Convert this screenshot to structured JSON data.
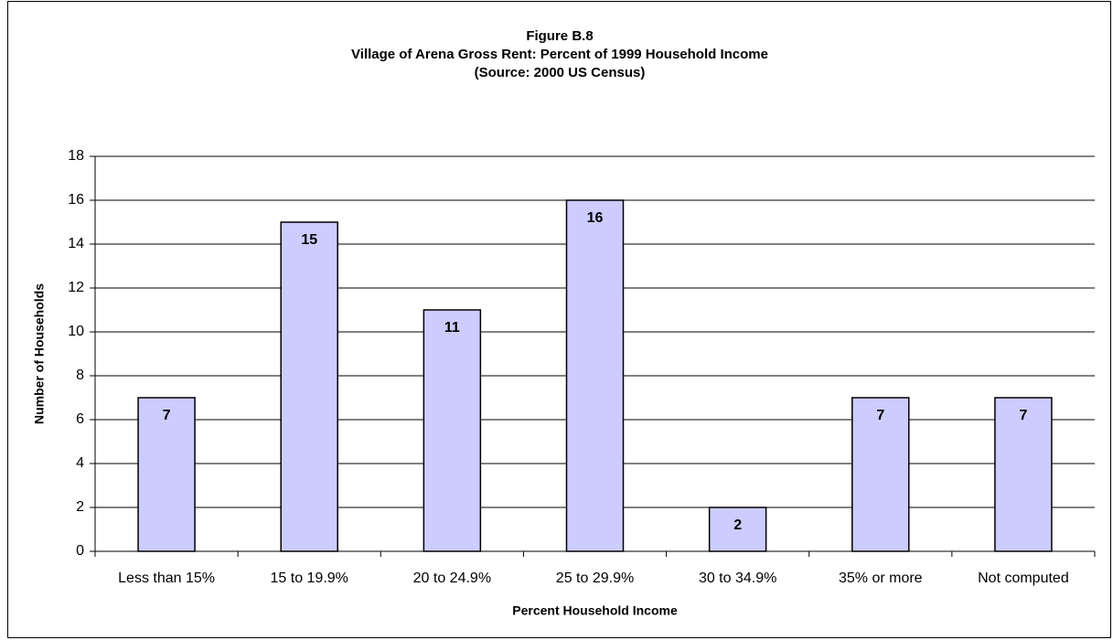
{
  "chart_data": {
    "type": "bar",
    "title": [
      "Figure B.8",
      "Village of Arena Gross Rent:  Percent of 1999 Household Income",
      "(Source:   2000 US Census)"
    ],
    "x_label": "Percent Household Income",
    "y_label": "Number of Households",
    "categories": [
      "Less than 15%",
      "15 to 19.9%",
      "20 to 24.9%",
      "25 to 29.9%",
      "30 to 34.9%",
      "35% or more",
      "Not computed"
    ],
    "values": [
      7,
      15,
      11,
      16,
      2,
      7,
      7
    ],
    "color": "#ccccff",
    "data_labels": true,
    "ylim": [
      0,
      18
    ],
    "yticks": [
      0,
      2,
      4,
      6,
      8,
      10,
      12,
      14,
      16,
      18
    ],
    "grid": true
  }
}
